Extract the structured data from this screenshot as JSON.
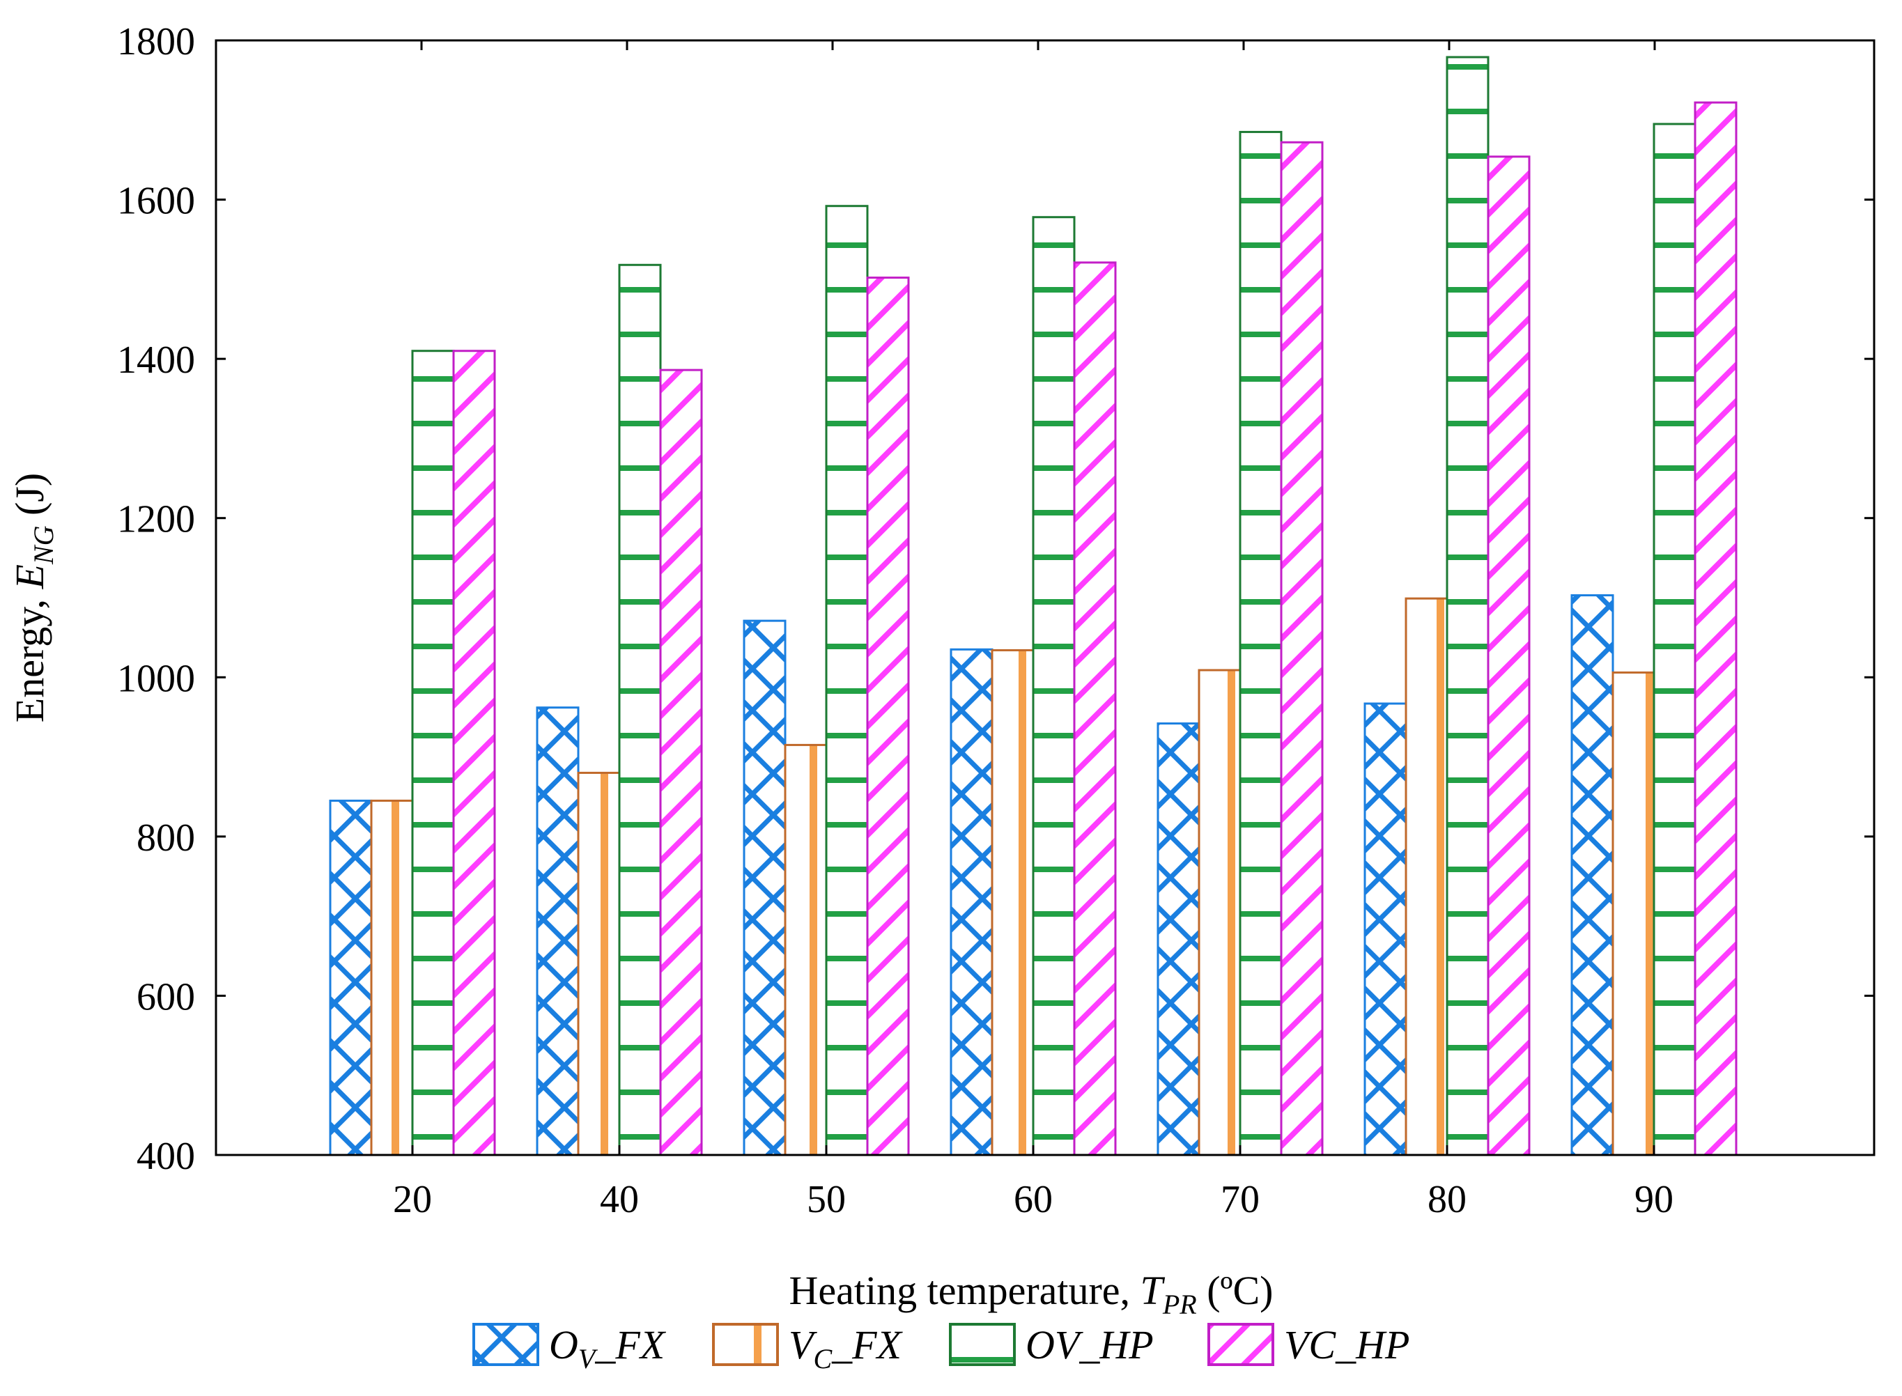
{
  "chart_data": {
    "type": "bar",
    "categories": [
      "20",
      "40",
      "50",
      "60",
      "70",
      "80",
      "90"
    ],
    "series": [
      {
        "name": "O_V_FX",
        "main": "O",
        "sub": "V",
        "suffix": "_FX",
        "color": "#1a7fe0",
        "pattern": "crosshatch",
        "values": [
          845,
          962,
          1071,
          1035,
          942,
          967,
          1103
        ]
      },
      {
        "name": "V_C_FX",
        "main": "V",
        "sub": "C",
        "suffix": "_FX",
        "color": "#c0692a",
        "accent": "#f5a04b",
        "pattern": "vertical",
        "values": [
          845,
          880,
          915,
          1034,
          1009,
          1099,
          1006
        ]
      },
      {
        "name": "OV_HP",
        "main": "OV_HP",
        "sub": "",
        "suffix": "",
        "color": "#1d7a33",
        "accent": "#22a045",
        "pattern": "horizontal",
        "values": [
          1410,
          1518,
          1592,
          1578,
          1685,
          1779,
          1695
        ]
      },
      {
        "name": "VC_HP",
        "main": "VC_HP",
        "sub": "",
        "suffix": "",
        "color": "#c21ec7",
        "accent": "#ff3dff",
        "pattern": "diagonal",
        "values": [
          1410,
          1386,
          1502,
          1521,
          1672,
          1654,
          1722
        ]
      }
    ],
    "ylim": [
      400,
      1800
    ],
    "yticks": [
      400,
      600,
      800,
      1000,
      1200,
      1400,
      1600,
      1800
    ],
    "ylabel": {
      "text": "Energy, ",
      "var": "E",
      "sub": "NG",
      "unit": " (J)"
    },
    "xlabel": {
      "text": "Heating temperature, ",
      "var": "T",
      "sub": "PR",
      "unit": " (ºC)"
    },
    "legend_position": "bottom"
  }
}
